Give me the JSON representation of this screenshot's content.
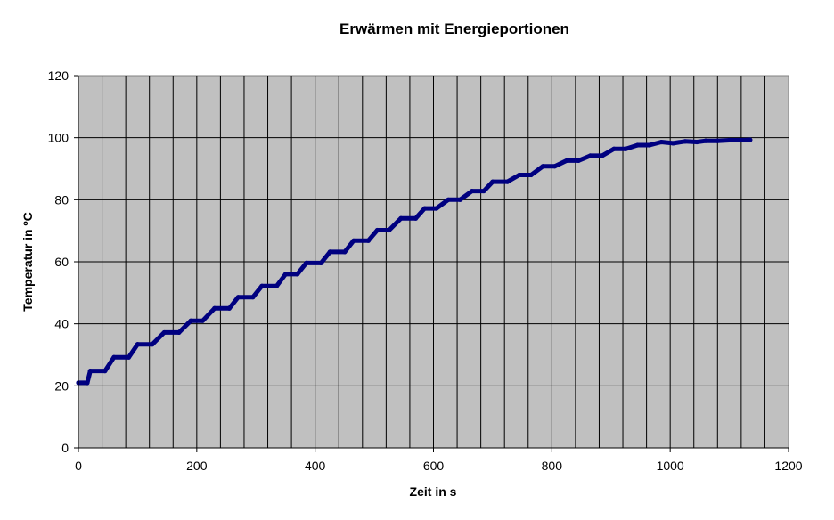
{
  "chart_data": {
    "type": "line",
    "title": "Erwärmen mit  Energieportionen",
    "xlabel": "Zeit in s",
    "ylabel": "Temperatur in ºC",
    "xlim": [
      0,
      1200
    ],
    "ylim": [
      0,
      120
    ],
    "x_ticks": [
      "0",
      "200",
      "400",
      "600",
      "800",
      "1000",
      "1200"
    ],
    "y_ticks": [
      "0",
      "20",
      "40",
      "60",
      "80",
      "100",
      "120"
    ],
    "grid": true,
    "plot_background": "#c0c0c0",
    "series_color": "#000080",
    "series": [
      {
        "points": [
          [
            0,
            21
          ],
          [
            15,
            21
          ],
          [
            20,
            24.8
          ],
          [
            45,
            24.8
          ],
          [
            60,
            29.2
          ],
          [
            85,
            29.2
          ],
          [
            100,
            33.4
          ],
          [
            125,
            33.4
          ],
          [
            145,
            37.2
          ],
          [
            170,
            37.2
          ],
          [
            190,
            41
          ],
          [
            210,
            41
          ],
          [
            230,
            45
          ],
          [
            255,
            45
          ],
          [
            270,
            48.6
          ],
          [
            295,
            48.6
          ],
          [
            310,
            52.2
          ],
          [
            335,
            52.2
          ],
          [
            350,
            56
          ],
          [
            370,
            56
          ],
          [
            385,
            59.6
          ],
          [
            410,
            59.6
          ],
          [
            425,
            63.2
          ],
          [
            450,
            63.2
          ],
          [
            465,
            66.8
          ],
          [
            490,
            66.8
          ],
          [
            505,
            70.2
          ],
          [
            525,
            70.2
          ],
          [
            545,
            74
          ],
          [
            570,
            74
          ],
          [
            585,
            77.2
          ],
          [
            605,
            77.2
          ],
          [
            625,
            80
          ],
          [
            645,
            80
          ],
          [
            665,
            82.8
          ],
          [
            685,
            82.8
          ],
          [
            700,
            85.8
          ],
          [
            725,
            85.8
          ],
          [
            745,
            88
          ],
          [
            765,
            88
          ],
          [
            785,
            90.8
          ],
          [
            805,
            90.8
          ],
          [
            825,
            92.6
          ],
          [
            845,
            92.6
          ],
          [
            865,
            94.2
          ],
          [
            885,
            94.2
          ],
          [
            905,
            96.4
          ],
          [
            925,
            96.4
          ],
          [
            945,
            97.6
          ],
          [
            965,
            97.6
          ],
          [
            985,
            98.6
          ],
          [
            1005,
            98.2
          ],
          [
            1025,
            98.8
          ],
          [
            1045,
            98.6
          ],
          [
            1060,
            99
          ],
          [
            1080,
            99
          ],
          [
            1100,
            99.2
          ],
          [
            1120,
            99.2
          ],
          [
            1135,
            99.3
          ]
        ]
      }
    ]
  }
}
